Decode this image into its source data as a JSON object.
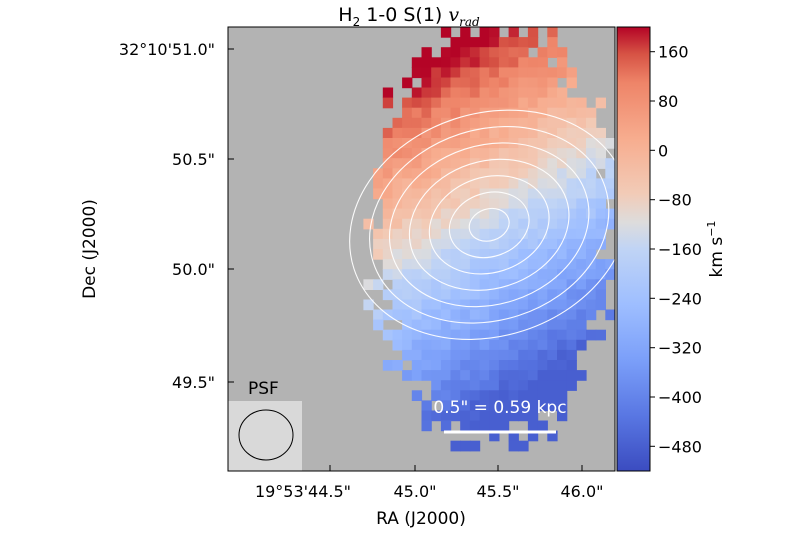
{
  "chart_data": {
    "type": "heatmap",
    "title": {
      "species": "H",
      "species_sub": "2",
      "transition": " 1-0 S(1) ",
      "quantity": "v",
      "quantity_sub": "rad"
    },
    "xlabel": "RA (J2000)",
    "ylabel": "Dec (J2000)",
    "x_ticks": [
      "19°53'44.5\"",
      "45.0\"",
      "45.5\"",
      "46.0\""
    ],
    "y_ticks": [
      "32°10'51.0\"",
      "50.5\"",
      "50.0\"",
      "49.5\""
    ],
    "xlim_arcsec_offset": [
      -0.4,
      1.6
    ],
    "ylim_arcsec_offset": [
      -0.6,
      1.6
    ],
    "colorbar": {
      "label": "km s",
      "label_sup": "−1",
      "ticks": [
        "160",
        "80",
        "0",
        "−80",
        "−160",
        "−240",
        "−320",
        "−400",
        "−480"
      ],
      "tick_values": [
        160,
        80,
        0,
        -80,
        -160,
        -240,
        -320,
        -400,
        -480
      ],
      "vmin": -520,
      "vmax": 200,
      "colormap": "coolwarm"
    },
    "velocity_field": {
      "center": [
        0.95,
        0.62
      ],
      "gradient_direction_deg": -62,
      "velocity_range": [
        -480,
        200
      ]
    },
    "contours": {
      "center": [
        0.95,
        0.62
      ],
      "levels": 7
    },
    "psf_label": "PSF",
    "scale_bar_label": "0.5\" = 0.59 kpc",
    "background_color": "#b3b3b3",
    "psf_box_color": "#dcdcdc"
  }
}
